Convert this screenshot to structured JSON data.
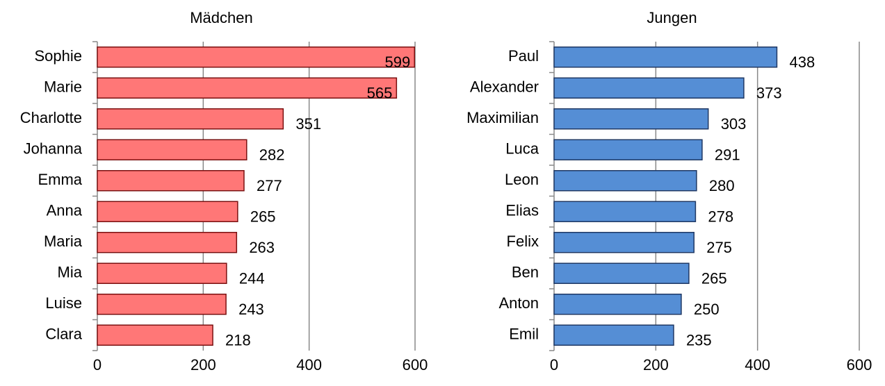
{
  "chart_data": [
    {
      "type": "bar",
      "title": "Mädchen",
      "categories": [
        "Sophie",
        "Marie",
        "Charlotte",
        "Johanna",
        "Emma",
        "Anna",
        "Maria",
        "Mia",
        "Luise",
        "Clara"
      ],
      "values": [
        599,
        565,
        351,
        282,
        277,
        265,
        263,
        244,
        243,
        218
      ],
      "color": "#ff7777",
      "edge_color": "#7a1010",
      "xlim": [
        0,
        600
      ],
      "xticks": [
        0,
        200,
        400,
        600
      ],
      "grid": true
    },
    {
      "type": "bar",
      "title": "Jungen",
      "categories": [
        "Paul",
        "Alexander",
        "Maximilian",
        "Luca",
        "Leon",
        "Elias",
        "Felix",
        "Ben",
        "Anton",
        "Emil"
      ],
      "values": [
        438,
        373,
        303,
        291,
        280,
        278,
        275,
        265,
        250,
        235
      ],
      "color": "#558ed5",
      "edge_color": "#1f3864",
      "xlim": [
        0,
        600
      ],
      "xticks": [
        0,
        200,
        400,
        600
      ],
      "grid": true
    }
  ]
}
